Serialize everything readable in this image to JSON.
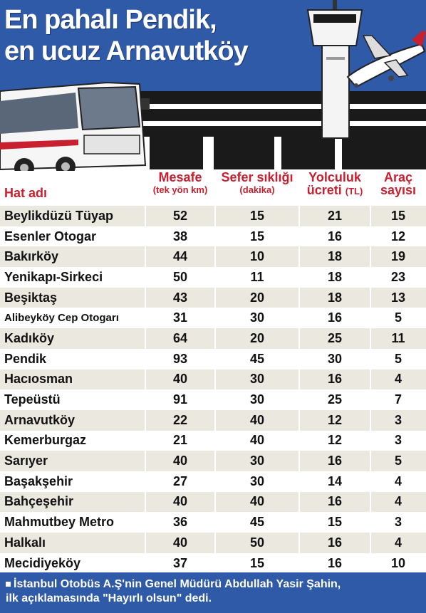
{
  "header": {
    "title_line1": "En pahalı Pendik,",
    "title_line2": "en ucuz Arnavutköy"
  },
  "columns": {
    "name": "Hat adı",
    "distance": "Mesafe",
    "distance_unit": "(tek yön km)",
    "frequency": "Sefer sıklığı",
    "frequency_unit": "(dakika)",
    "fare": "Yolculuk",
    "fare_line2": "ücreti",
    "fare_unit": "(TL)",
    "vehicles": "Araç",
    "vehicles_line2": "sayısı"
  },
  "rows": [
    {
      "name": "Beylikdüzü Tüyap",
      "distance": "52",
      "frequency": "15",
      "fare": "21",
      "vehicles": "15"
    },
    {
      "name": "Esenler Otogar",
      "distance": "38",
      "frequency": "15",
      "fare": "16",
      "vehicles": "12"
    },
    {
      "name": "Bakırköy",
      "distance": "44",
      "frequency": "10",
      "fare": "18",
      "vehicles": "19"
    },
    {
      "name": "Yenikapı-Sirkeci",
      "distance": "50",
      "frequency": "11",
      "fare": "18",
      "vehicles": "23"
    },
    {
      "name": "Beşiktaş",
      "distance": "43",
      "frequency": "20",
      "fare": "18",
      "vehicles": "13"
    },
    {
      "name": "Alibeyköy Cep Otogarı",
      "distance": "31",
      "frequency": "30",
      "fare": "16",
      "vehicles": "5"
    },
    {
      "name": "Kadıköy",
      "distance": "64",
      "frequency": "20",
      "fare": "25",
      "vehicles": "11"
    },
    {
      "name": "Pendik",
      "distance": "93",
      "frequency": "45",
      "fare": "30",
      "vehicles": "5"
    },
    {
      "name": "Hacıosman",
      "distance": "40",
      "frequency": "30",
      "fare": "16",
      "vehicles": "4"
    },
    {
      "name": "Tepeüstü",
      "distance": "91",
      "frequency": "30",
      "fare": "25",
      "vehicles": "7"
    },
    {
      "name": "Arnavutköy",
      "distance": "22",
      "frequency": "40",
      "fare": "12",
      "vehicles": "3"
    },
    {
      "name": "Kemerburgaz",
      "distance": "21",
      "frequency": "40",
      "fare": "12",
      "vehicles": "3"
    },
    {
      "name": "Sarıyer",
      "distance": "40",
      "frequency": "30",
      "fare": "16",
      "vehicles": "5"
    },
    {
      "name": "Başakşehir",
      "distance": "27",
      "frequency": "30",
      "fare": "14",
      "vehicles": "4"
    },
    {
      "name": "Bahçeşehir",
      "distance": "40",
      "frequency": "40",
      "fare": "16",
      "vehicles": "4"
    },
    {
      "name": "Mahmutbey Metro",
      "distance": "36",
      "frequency": "45",
      "fare": "15",
      "vehicles": "3"
    },
    {
      "name": "Halkalı",
      "distance": "40",
      "frequency": "50",
      "fare": "16",
      "vehicles": "4"
    },
    {
      "name": "Mecidiyeköy",
      "distance": "37",
      "frequency": "15",
      "fare": "16",
      "vehicles": "10"
    }
  ],
  "footer": {
    "line1": "İstanbul Otobüs A.Ş'nin Genel Müdürü Abdullah Yasir Şahin,",
    "line2": "ilk açıklamasında \"Hayırlı olsun\" dedi."
  },
  "colors": {
    "blue": "#2f5aa7",
    "red_header": "#c8202f",
    "row_shade": "#ebe8e0"
  },
  "icons": [
    "bus-illustration",
    "control-tower-illustration",
    "airplane-illustration"
  ]
}
